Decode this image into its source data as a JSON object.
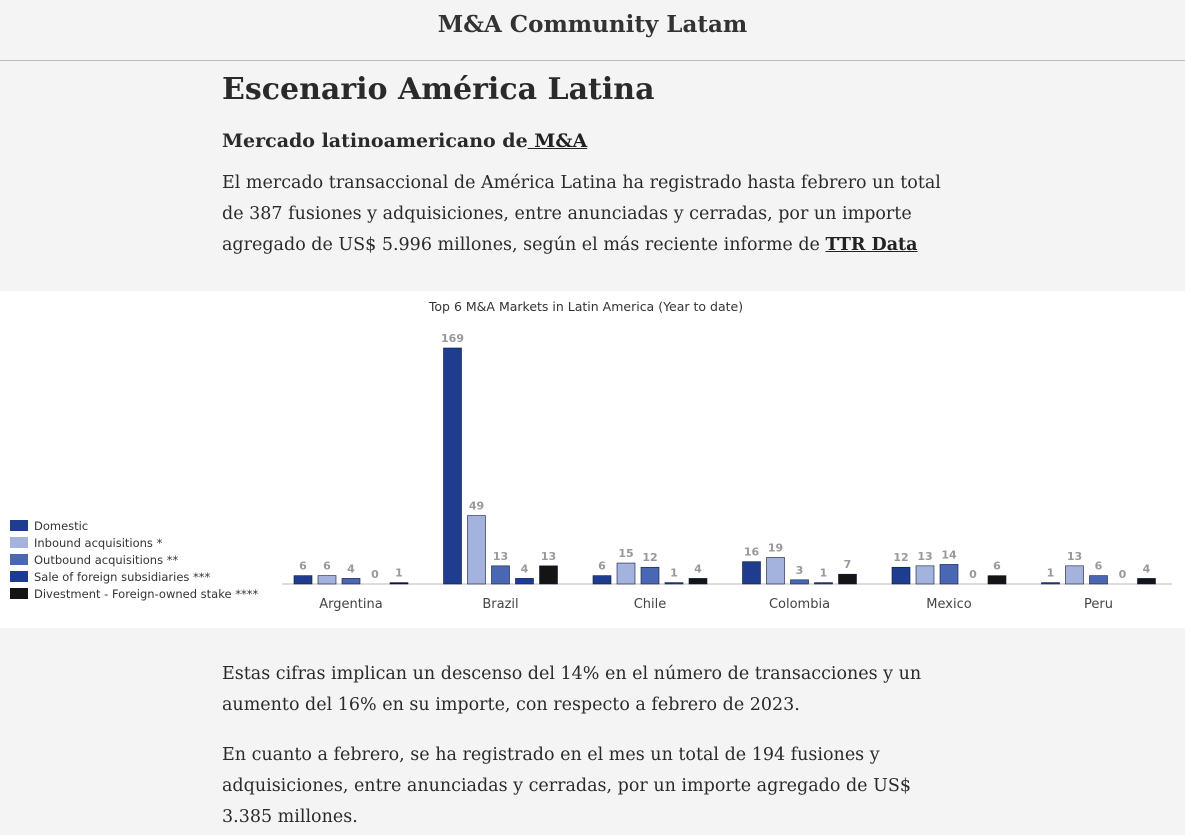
{
  "header": {
    "title": "M&A Community Latam"
  },
  "article": {
    "title": "Escenario América Latina",
    "subtitle_prefix": "Mercado latinoamericano de",
    "subtitle_link": " M&A",
    "p1_text": "El mercado transaccional de América Latina ha registrado hasta febrero un total de 387 fusiones y adquisiciones, entre anunciadas y cerradas, por un importe agregado de US$ 5.996 millones, según el más reciente informe de ",
    "p1_link": "TTR Data",
    "p2": "Estas cifras implican un descenso del 14% en el número de transacciones y un aumento del 16% en su importe, con respecto a febrero de 2023.",
    "p3": "En cuanto a febrero, se ha registrado en el mes un total de 194 fusiones y adquisiciones, entre anunciadas y cerradas, por un importe agregado de US$ 3.385 millones."
  },
  "chart_data": {
    "type": "bar",
    "title": "Top 6 M&A Markets in Latin America (Year to date)",
    "categories": [
      "Argentina",
      "Brazil",
      "Chile",
      "Colombia",
      "Mexico",
      "Peru"
    ],
    "series": [
      {
        "name": "Domestic",
        "color": "#1f3d8f",
        "values": [
          6,
          169,
          6,
          16,
          12,
          1
        ]
      },
      {
        "name": "Inbound acquisitions *",
        "color": "#a4b3dd",
        "values": [
          6,
          49,
          15,
          19,
          13,
          13
        ]
      },
      {
        "name": "Outbound acquisitions **",
        "color": "#4a67b3",
        "values": [
          4,
          13,
          12,
          3,
          14,
          6
        ]
      },
      {
        "name": "Sale of foreign subsidiaries ***",
        "color": "#1c3a9a",
        "values": [
          0,
          4,
          1,
          1,
          0,
          0
        ]
      },
      {
        "name": "Divestment - Foreign-owned stake ****",
        "color": "#141414",
        "values": [
          1,
          13,
          4,
          7,
          6,
          4
        ]
      }
    ],
    "legend": "left",
    "ylim": [
      0,
      169
    ],
    "grid": false
  }
}
